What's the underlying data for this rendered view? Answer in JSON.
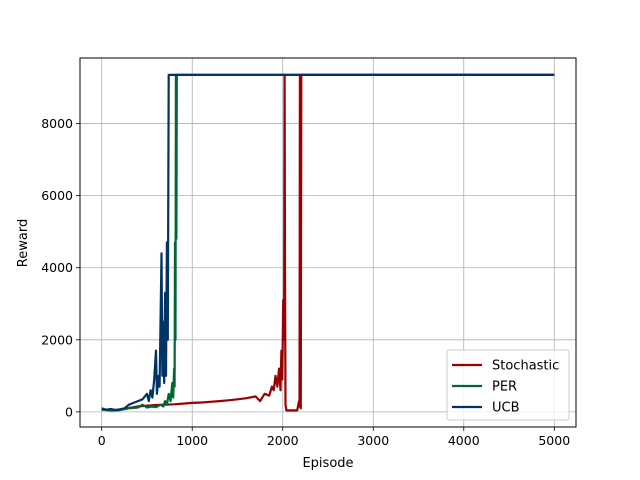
{
  "chart_data": {
    "type": "line",
    "title": "",
    "xlabel": "Episode",
    "ylabel": "Reward",
    "xlim": [
      -240,
      5240
    ],
    "ylim": [
      -420,
      9820
    ],
    "x_ticks": [
      0,
      1000,
      2000,
      3000,
      4000,
      5000
    ],
    "y_ticks": [
      0,
      2000,
      4000,
      6000,
      8000
    ],
    "grid": true,
    "legend_position": "lower-right",
    "series": [
      {
        "name": "Stochastic",
        "color": "#990000",
        "points": [
          [
            0,
            60
          ],
          [
            100,
            50
          ],
          [
            200,
            60
          ],
          [
            300,
            110
          ],
          [
            400,
            150
          ],
          [
            500,
            170
          ],
          [
            600,
            190
          ],
          [
            700,
            200
          ],
          [
            800,
            210
          ],
          [
            900,
            230
          ],
          [
            1000,
            250
          ],
          [
            1100,
            260
          ],
          [
            1200,
            280
          ],
          [
            1300,
            300
          ],
          [
            1400,
            320
          ],
          [
            1500,
            350
          ],
          [
            1600,
            380
          ],
          [
            1700,
            430
          ],
          [
            1750,
            300
          ],
          [
            1800,
            500
          ],
          [
            1850,
            450
          ],
          [
            1880,
            700
          ],
          [
            1900,
            600
          ],
          [
            1920,
            1000
          ],
          [
            1940,
            700
          ],
          [
            1960,
            1200
          ],
          [
            1975,
            600
          ],
          [
            1985,
            1700
          ],
          [
            1995,
            900
          ],
          [
            2005,
            3100
          ],
          [
            2015,
            2000
          ],
          [
            2020,
            9350
          ],
          [
            2025,
            4000
          ],
          [
            2030,
            200
          ],
          [
            2040,
            40
          ],
          [
            2080,
            40
          ],
          [
            2120,
            40
          ],
          [
            2160,
            40
          ],
          [
            2180,
            300
          ],
          [
            2185,
            150
          ],
          [
            2190,
            9350
          ],
          [
            2195,
            200
          ],
          [
            2200,
            100
          ],
          [
            2205,
            9350
          ],
          [
            2300,
            9350
          ],
          [
            3000,
            9350
          ],
          [
            4000,
            9350
          ],
          [
            5000,
            9350
          ]
        ]
      },
      {
        "name": "PER",
        "color": "#006633",
        "points": [
          [
            0,
            60
          ],
          [
            100,
            40
          ],
          [
            200,
            50
          ],
          [
            300,
            100
          ],
          [
            400,
            120
          ],
          [
            450,
            200
          ],
          [
            500,
            120
          ],
          [
            550,
            150
          ],
          [
            600,
            130
          ],
          [
            650,
            200
          ],
          [
            680,
            150
          ],
          [
            700,
            300
          ],
          [
            720,
            200
          ],
          [
            740,
            500
          ],
          [
            760,
            300
          ],
          [
            780,
            800
          ],
          [
            790,
            400
          ],
          [
            800,
            1200
          ],
          [
            805,
            700
          ],
          [
            810,
            4700
          ],
          [
            815,
            2000
          ],
          [
            820,
            9350
          ],
          [
            825,
            4800
          ],
          [
            830,
            9350
          ],
          [
            840,
            9350
          ],
          [
            1000,
            9350
          ],
          [
            2000,
            9350
          ],
          [
            3000,
            9350
          ],
          [
            4000,
            9350
          ],
          [
            5000,
            9350
          ]
        ]
      },
      {
        "name": "UCB",
        "color": "#003366",
        "points": [
          [
            0,
            100
          ],
          [
            50,
            60
          ],
          [
            100,
            80
          ],
          [
            150,
            50
          ],
          [
            200,
            70
          ],
          [
            250,
            100
          ],
          [
            300,
            200
          ],
          [
            350,
            250
          ],
          [
            400,
            300
          ],
          [
            450,
            350
          ],
          [
            500,
            500
          ],
          [
            520,
            300
          ],
          [
            540,
            600
          ],
          [
            560,
            400
          ],
          [
            580,
            900
          ],
          [
            600,
            1700
          ],
          [
            610,
            500
          ],
          [
            630,
            1000
          ],
          [
            640,
            700
          ],
          [
            660,
            4400
          ],
          [
            670,
            1000
          ],
          [
            680,
            2500
          ],
          [
            690,
            800
          ],
          [
            700,
            3300
          ],
          [
            710,
            1000
          ],
          [
            720,
            4700
          ],
          [
            730,
            2000
          ],
          [
            740,
            9350
          ],
          [
            760,
            9350
          ],
          [
            1000,
            9350
          ],
          [
            2000,
            9350
          ],
          [
            3000,
            9350
          ],
          [
            4000,
            9350
          ],
          [
            5000,
            9350
          ]
        ]
      }
    ]
  }
}
